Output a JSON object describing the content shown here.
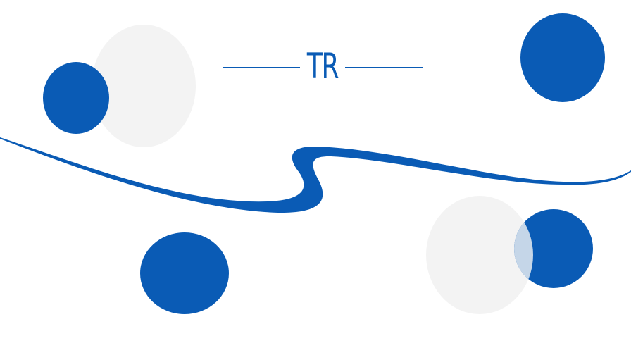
{
  "brand": {
    "logo_text": "TR"
  },
  "colors": {
    "primary_blue": "#0a5bb5",
    "light_gray": "#f3f3f3",
    "background": "#ffffff"
  }
}
